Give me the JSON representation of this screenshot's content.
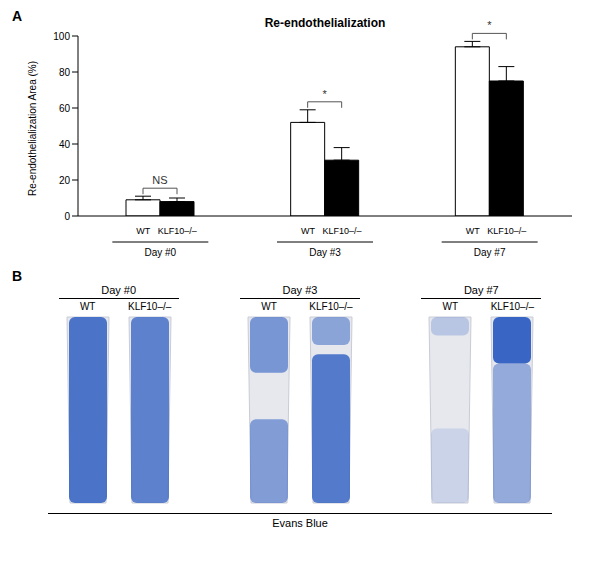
{
  "chart_data": {
    "type": "bar",
    "panel": "A",
    "title": "Re-endothelialization",
    "y_label": "Re-endothelialization Area (%)",
    "categories": [
      "Day #0",
      "Day #3",
      "Day #7"
    ],
    "series": [
      {
        "name": "WT",
        "color": "#ffffff",
        "values": [
          9,
          52,
          94
        ],
        "errors": [
          2,
          7,
          3
        ]
      },
      {
        "name": "KLF10–/–",
        "color": "#000000",
        "values": [
          8,
          31,
          75
        ],
        "errors": [
          2,
          7,
          8
        ]
      }
    ],
    "annotations": [
      "NS",
      "*",
      "*"
    ],
    "ylim": [
      0,
      100
    ],
    "yticks": [
      0,
      20,
      40,
      60,
      80,
      100
    ]
  },
  "panel_b": {
    "label": "B",
    "stain": "Evans Blue",
    "groups": [
      {
        "day": "Day #0",
        "samples": [
          "WT",
          "KLF10–/–"
        ]
      },
      {
        "day": "Day #3",
        "samples": [
          "WT",
          "KLF10–/–"
        ]
      },
      {
        "day": "Day #7",
        "samples": [
          "WT",
          "KLF10–/–"
        ]
      }
    ]
  }
}
